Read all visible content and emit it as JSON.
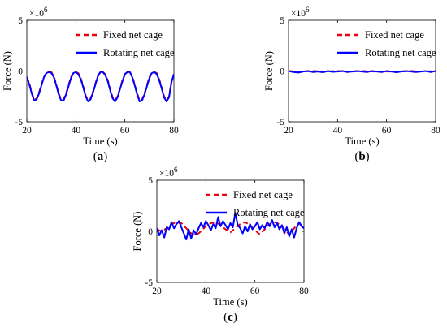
{
  "chart_data": [
    {
      "type": "line",
      "panel_label": "(a)",
      "panel_letter": "a",
      "xlabel": "Time (s)",
      "ylabel": "Force (N)",
      "y_multiplier": "×10",
      "y_exponent": "6",
      "xlim": [
        20,
        80
      ],
      "ylim": [
        -5,
        5
      ],
      "xticks": [
        20,
        40,
        60,
        80
      ],
      "yticks": [
        -5,
        0,
        5
      ],
      "grid": false,
      "legend_position": "top-right",
      "series": [
        {
          "name": "Fixed net cage",
          "style": "dashed",
          "color": "#e8000b",
          "x": [
            20,
            21,
            22,
            23,
            24,
            25,
            26,
            27,
            28,
            29,
            30,
            31,
            32,
            33,
            34,
            35,
            36,
            37,
            38,
            39,
            40,
            41,
            42,
            43,
            44,
            45,
            46,
            47,
            48,
            49,
            50,
            51,
            52,
            53,
            54,
            55,
            56,
            57,
            58,
            59,
            60,
            61,
            62,
            63,
            64,
            65,
            66,
            67,
            68,
            69,
            70,
            71,
            72,
            73,
            74,
            75,
            76,
            77,
            78,
            79,
            80
          ],
          "y": [
            -0.6,
            -1.2,
            -2.1,
            -2.8,
            -2.7,
            -2.1,
            -1.3,
            -0.6,
            -0.2,
            -0.1,
            -0.1,
            -0.5,
            -1.3,
            -2.2,
            -2.8,
            -2.8,
            -2.2,
            -1.4,
            -0.6,
            -0.2,
            -0.1,
            -0.2,
            -0.7,
            -1.5,
            -2.4,
            -2.9,
            -2.7,
            -2.0,
            -1.2,
            -0.5,
            -0.1,
            -0.1,
            -0.3,
            -0.9,
            -1.8,
            -2.6,
            -2.9,
            -2.5,
            -1.7,
            -0.9,
            -0.3,
            -0.1,
            -0.1,
            -0.5,
            -1.3,
            -2.2,
            -2.9,
            -2.8,
            -2.2,
            -1.4,
            -0.6,
            -0.2,
            -0.1,
            -0.2,
            -0.8,
            -1.6,
            -2.5,
            -2.9,
            -2.5,
            -1.0,
            -0.3
          ]
        },
        {
          "name": "Rotating net cage",
          "style": "solid",
          "color": "#0000ff",
          "x": [
            20,
            21,
            22,
            23,
            24,
            25,
            26,
            27,
            28,
            29,
            30,
            31,
            32,
            33,
            34,
            35,
            36,
            37,
            38,
            39,
            40,
            41,
            42,
            43,
            44,
            45,
            46,
            47,
            48,
            49,
            50,
            51,
            52,
            53,
            54,
            55,
            56,
            57,
            58,
            59,
            60,
            61,
            62,
            63,
            64,
            65,
            66,
            67,
            68,
            69,
            70,
            71,
            72,
            73,
            74,
            75,
            76,
            77,
            78,
            79,
            80
          ],
          "y": [
            -0.6,
            -1.3,
            -2.2,
            -2.9,
            -2.8,
            -2.2,
            -1.4,
            -0.6,
            -0.2,
            -0.1,
            -0.2,
            -0.6,
            -1.4,
            -2.3,
            -2.9,
            -2.9,
            -2.3,
            -1.5,
            -0.7,
            -0.2,
            -0.1,
            -0.3,
            -0.8,
            -1.6,
            -2.5,
            -3.0,
            -2.8,
            -2.1,
            -1.3,
            -0.5,
            -0.1,
            -0.1,
            -0.4,
            -1.0,
            -1.9,
            -2.7,
            -3.0,
            -2.6,
            -1.8,
            -1.0,
            -0.3,
            -0.1,
            -0.1,
            -0.6,
            -1.4,
            -2.3,
            -3.0,
            -2.9,
            -2.3,
            -1.5,
            -0.7,
            -0.2,
            -0.1,
            -0.3,
            -0.9,
            -1.7,
            -2.6,
            -3.0,
            -2.6,
            -1.1,
            -0.3
          ]
        }
      ]
    },
    {
      "type": "line",
      "panel_label": "(b)",
      "panel_letter": "b",
      "xlabel": "Time (s)",
      "ylabel": "Force (N)",
      "y_multiplier": "×10",
      "y_exponent": "6",
      "xlim": [
        20,
        80
      ],
      "ylim": [
        -5,
        5
      ],
      "xticks": [
        20,
        40,
        60,
        80
      ],
      "yticks": [
        -5,
        0,
        5
      ],
      "grid": false,
      "legend_position": "top-right",
      "series": [
        {
          "name": "Fixed net cage",
          "style": "dashed",
          "color": "#e8000b",
          "x": [
            20,
            25,
            30,
            35,
            40,
            45,
            50,
            55,
            60,
            65,
            70,
            75,
            80
          ],
          "y": [
            0.0,
            -0.05,
            0.0,
            -0.05,
            0.0,
            -0.05,
            0.0,
            -0.05,
            -0.05,
            -0.05,
            0.0,
            -0.05,
            0.0
          ]
        },
        {
          "name": "Rotating net cage",
          "style": "solid",
          "color": "#0000ff",
          "x": [
            20,
            22,
            24,
            26,
            28,
            30,
            32,
            34,
            36,
            38,
            40,
            42,
            44,
            46,
            48,
            50,
            52,
            54,
            56,
            58,
            60,
            62,
            64,
            66,
            68,
            70,
            72,
            74,
            76,
            78,
            80
          ],
          "y": [
            0.0,
            -0.1,
            -0.15,
            -0.05,
            0.0,
            -0.1,
            -0.05,
            -0.12,
            0.0,
            -0.08,
            -0.05,
            0.0,
            -0.1,
            -0.05,
            0.0,
            -0.05,
            -0.1,
            0.0,
            -0.05,
            -0.1,
            0.0,
            -0.05,
            -0.12,
            -0.05,
            0.0,
            -0.05,
            -0.1,
            -0.05,
            0.0,
            -0.1,
            0.0
          ]
        }
      ]
    },
    {
      "type": "line",
      "panel_label": "(c)",
      "panel_letter": "c",
      "xlabel": "Time (s)",
      "ylabel": "Force (N)",
      "y_multiplier": "×10",
      "y_exponent": "6",
      "xlim": [
        20,
        80
      ],
      "ylim": [
        -5,
        5
      ],
      "xticks": [
        20,
        40,
        60,
        80
      ],
      "yticks": [
        -5,
        0,
        5
      ],
      "grid": false,
      "legend_position": "top-right",
      "series": [
        {
          "name": "Fixed net cage",
          "style": "dashed",
          "color": "#e8000b",
          "x": [
            20,
            22,
            24,
            26,
            28,
            30,
            32,
            34,
            36,
            38,
            40,
            42,
            44,
            46,
            48,
            50,
            52,
            54,
            56,
            58,
            60,
            62,
            64,
            66,
            68,
            70,
            72,
            74,
            76,
            78,
            80
          ],
          "y": [
            0.2,
            0.0,
            0.3,
            0.7,
            0.9,
            0.8,
            0.3,
            -0.2,
            -0.4,
            0.0,
            0.5,
            0.8,
            0.9,
            0.6,
            0.2,
            -0.1,
            0.3,
            0.7,
            0.9,
            0.6,
            0.1,
            -0.3,
            0.2,
            0.7,
            0.9,
            0.7,
            0.2,
            -0.3,
            0.3,
            0.8,
            0.3
          ]
        },
        {
          "name": "Rotating net cage",
          "style": "solid",
          "color": "#0000ff",
          "x": [
            20,
            21,
            22,
            23,
            24,
            25,
            26,
            27,
            28,
            29,
            30,
            31,
            32,
            33,
            34,
            35,
            36,
            37,
            38,
            39,
            40,
            41,
            42,
            43,
            44,
            45,
            46,
            47,
            48,
            49,
            50,
            51,
            52,
            53,
            54,
            55,
            56,
            57,
            58,
            59,
            60,
            61,
            62,
            63,
            64,
            65,
            66,
            67,
            68,
            69,
            70,
            71,
            72,
            73,
            74,
            75,
            76,
            77,
            78,
            79,
            80
          ],
          "y": [
            0.3,
            -0.4,
            0.1,
            -0.6,
            0.4,
            0.2,
            0.9,
            0.3,
            0.7,
            1.0,
            0.4,
            -0.2,
            -0.8,
            0.2,
            -0.7,
            0.1,
            -0.3,
            0.3,
            0.8,
            0.4,
            1.0,
            0.6,
            0.1,
            0.7,
            0.3,
            1.4,
            0.5,
            1.0,
            0.6,
            0.2,
            0.8,
            0.4,
            1.8,
            0.6,
            0.3,
            -0.2,
            0.5,
            0.0,
            0.7,
            0.2,
            0.5,
            0.9,
            0.2,
            0.6,
            0.3,
            0.9,
            0.5,
            1.1,
            0.4,
            0.8,
            0.2,
            0.6,
            -0.2,
            0.4,
            -0.5,
            0.2,
            -0.6,
            0.3,
            0.9,
            0.5,
            0.3
          ]
        }
      ]
    }
  ]
}
